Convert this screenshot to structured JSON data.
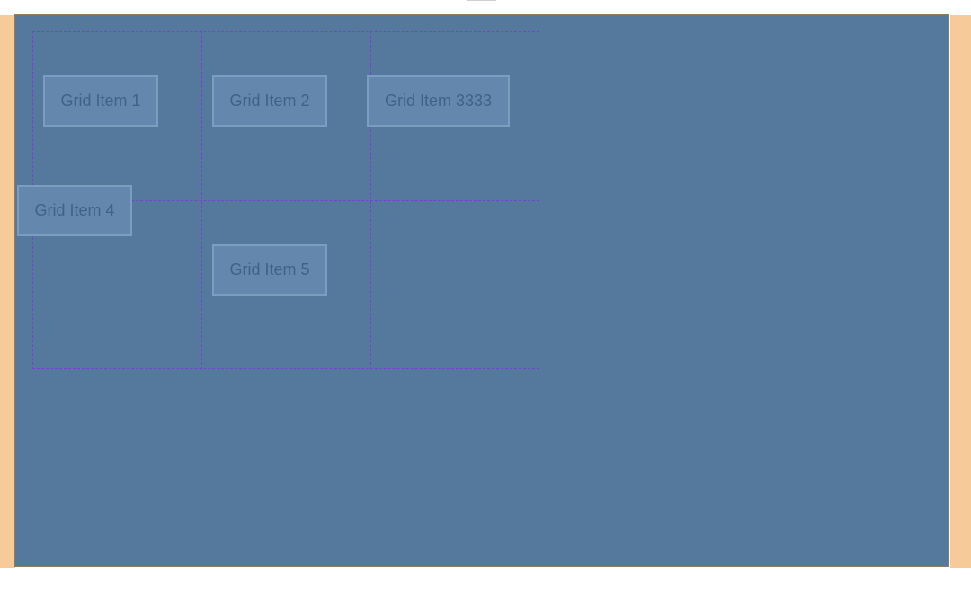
{
  "grid": {
    "items": [
      {
        "label": "Grid Item 1"
      },
      {
        "label": "Grid Item 2"
      },
      {
        "label": "Grid Item 3333"
      },
      {
        "label": "Grid Item 4"
      },
      {
        "label": "Grid Item 5"
      }
    ]
  },
  "colors": {
    "page_background": "#ffffff",
    "margin_highlight": "#f7ca99",
    "container_background": "#55799c",
    "item_background": "#6488ad",
    "item_border": "#7a9dc0",
    "item_text": "#3f6388",
    "grid_line": "#7a3fd6"
  }
}
